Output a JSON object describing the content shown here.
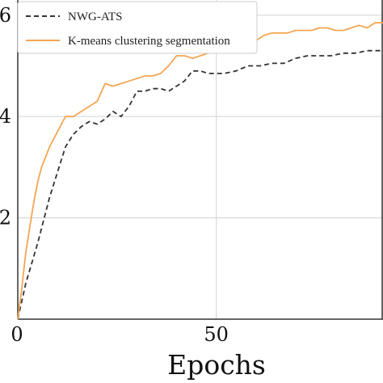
{
  "chart_data": {
    "type": "line",
    "title": "",
    "xlabel": "Epochs",
    "ylabel": "",
    "xlim": [
      0,
      92
    ],
    "ylim": [
      0,
      0.63
    ],
    "x_ticks": [
      0,
      50
    ],
    "x_tick_labels": [
      "0",
      "50"
    ],
    "y_ticks": [
      0.2,
      0.4,
      0.6
    ],
    "y_tick_labels": [
      "2",
      "4",
      "6"
    ],
    "grid": true,
    "legend_position": "top-left",
    "series": [
      {
        "name": "NWG-ATS",
        "style": "dashed",
        "color": "#333333",
        "points": [
          [
            0,
            0.0
          ],
          [
            2,
            0.07
          ],
          [
            5,
            0.15
          ],
          [
            8,
            0.24
          ],
          [
            10,
            0.29
          ],
          [
            12,
            0.34
          ],
          [
            14,
            0.365
          ],
          [
            16,
            0.38
          ],
          [
            18,
            0.39
          ],
          [
            20,
            0.385
          ],
          [
            22,
            0.395
          ],
          [
            24,
            0.41
          ],
          [
            26,
            0.4
          ],
          [
            28,
            0.42
          ],
          [
            30,
            0.45
          ],
          [
            32,
            0.45
          ],
          [
            34,
            0.455
          ],
          [
            36,
            0.455
          ],
          [
            38,
            0.45
          ],
          [
            40,
            0.46
          ],
          [
            42,
            0.47
          ],
          [
            44,
            0.49
          ],
          [
            46,
            0.49
          ],
          [
            48,
            0.485
          ],
          [
            50,
            0.485
          ],
          [
            52,
            0.485
          ],
          [
            55,
            0.49
          ],
          [
            58,
            0.5
          ],
          [
            61,
            0.5
          ],
          [
            64,
            0.505
          ],
          [
            67,
            0.505
          ],
          [
            70,
            0.515
          ],
          [
            73,
            0.52
          ],
          [
            76,
            0.52
          ],
          [
            79,
            0.52
          ],
          [
            82,
            0.525
          ],
          [
            85,
            0.525
          ],
          [
            88,
            0.53
          ],
          [
            92,
            0.53
          ]
        ]
      },
      {
        "name": "K-means clustering segmentation",
        "style": "solid",
        "color": "#f5a552",
        "points": [
          [
            0,
            0.0
          ],
          [
            1,
            0.06
          ],
          [
            2,
            0.13
          ],
          [
            3,
            0.18
          ],
          [
            4,
            0.23
          ],
          [
            5,
            0.27
          ],
          [
            6,
            0.3
          ],
          [
            7,
            0.32
          ],
          [
            8,
            0.34
          ],
          [
            10,
            0.37
          ],
          [
            12,
            0.4
          ],
          [
            14,
            0.4
          ],
          [
            16,
            0.41
          ],
          [
            18,
            0.42
          ],
          [
            20,
            0.43
          ],
          [
            22,
            0.465
          ],
          [
            24,
            0.46
          ],
          [
            26,
            0.465
          ],
          [
            28,
            0.47
          ],
          [
            30,
            0.475
          ],
          [
            32,
            0.48
          ],
          [
            34,
            0.48
          ],
          [
            36,
            0.485
          ],
          [
            38,
            0.5
          ],
          [
            40,
            0.52
          ],
          [
            42,
            0.52
          ],
          [
            44,
            0.515
          ],
          [
            46,
            0.52
          ],
          [
            48,
            0.525
          ],
          [
            50,
            0.535
          ],
          [
            52,
            0.535
          ],
          [
            54,
            0.53
          ],
          [
            56,
            0.53
          ],
          [
            58,
            0.54
          ],
          [
            60,
            0.55
          ],
          [
            62,
            0.56
          ],
          [
            64,
            0.565
          ],
          [
            66,
            0.565
          ],
          [
            68,
            0.565
          ],
          [
            70,
            0.57
          ],
          [
            72,
            0.57
          ],
          [
            74,
            0.57
          ],
          [
            76,
            0.575
          ],
          [
            78,
            0.575
          ],
          [
            80,
            0.57
          ],
          [
            82,
            0.57
          ],
          [
            84,
            0.575
          ],
          [
            86,
            0.58
          ],
          [
            88,
            0.575
          ],
          [
            90,
            0.585
          ],
          [
            92,
            0.585
          ]
        ]
      }
    ]
  }
}
